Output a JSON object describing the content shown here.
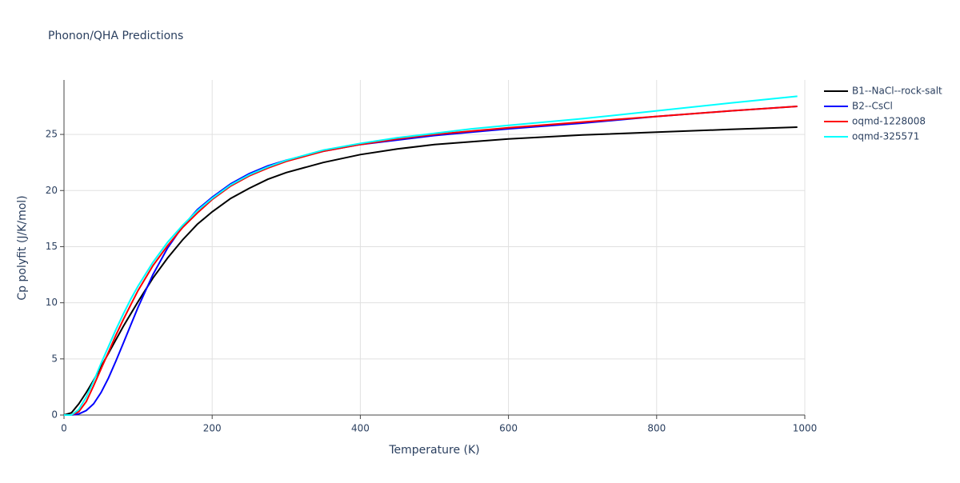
{
  "chart_data": {
    "type": "line",
    "title": "Phonon/QHA Predictions",
    "x_label": "Temperature (K)",
    "y_label": "Cp polyfit (J/K/mol)",
    "x": [
      0,
      10,
      20,
      30,
      40,
      50,
      60,
      70,
      80,
      90,
      100,
      120,
      140,
      160,
      180,
      200,
      225,
      250,
      275,
      300,
      350,
      400,
      450,
      500,
      550,
      600,
      700,
      800,
      900,
      990
    ],
    "series": [
      {
        "name": "B1--NaCl--rock-salt",
        "color": "#000000",
        "values": [
          0,
          0.2,
          1.0,
          2.0,
          3.1,
          4.3,
          5.5,
          6.7,
          7.9,
          9.0,
          10.1,
          12.2,
          14.0,
          15.6,
          17.0,
          18.1,
          19.3,
          20.2,
          21.0,
          21.6,
          22.5,
          23.2,
          23.7,
          24.1,
          24.35,
          24.6,
          24.95,
          25.2,
          25.45,
          25.65
        ]
      },
      {
        "name": "B2--CsCl",
        "color": "#0000ff",
        "values": [
          0,
          0,
          0.1,
          0.4,
          1.0,
          2.0,
          3.3,
          4.8,
          6.4,
          8.0,
          9.6,
          12.5,
          14.9,
          16.8,
          18.3,
          19.4,
          20.6,
          21.5,
          22.2,
          22.7,
          23.5,
          24.1,
          24.5,
          24.9,
          25.2,
          25.5,
          26.0,
          26.6,
          27.1,
          27.5
        ]
      },
      {
        "name": "oqmd-1228008",
        "color": "#ff0000",
        "values": [
          0,
          0,
          0.3,
          1.2,
          2.6,
          4.1,
          5.6,
          7.1,
          8.5,
          9.8,
          11.1,
          13.3,
          15.1,
          16.7,
          18.0,
          19.2,
          20.4,
          21.3,
          22.0,
          22.6,
          23.5,
          24.1,
          24.6,
          25.0,
          25.3,
          25.6,
          26.1,
          26.6,
          27.1,
          27.5
        ]
      },
      {
        "name": "oqmd-325571",
        "color": "#00ffff",
        "values": [
          0,
          0,
          0.5,
          1.6,
          3.0,
          4.6,
          6.1,
          7.6,
          9.0,
          10.3,
          11.5,
          13.6,
          15.4,
          16.9,
          18.2,
          19.3,
          20.5,
          21.4,
          22.1,
          22.7,
          23.6,
          24.2,
          24.7,
          25.1,
          25.5,
          25.8,
          26.4,
          27.1,
          27.8,
          28.4
        ]
      }
    ],
    "xlim": [
      0,
      1000
    ],
    "xticks": [
      0,
      200,
      400,
      600,
      800,
      1000
    ],
    "ylim": [
      0,
      29.85
    ],
    "yticks": [
      0,
      5,
      10,
      15,
      20,
      25
    ],
    "grid": true,
    "legend": "right"
  }
}
